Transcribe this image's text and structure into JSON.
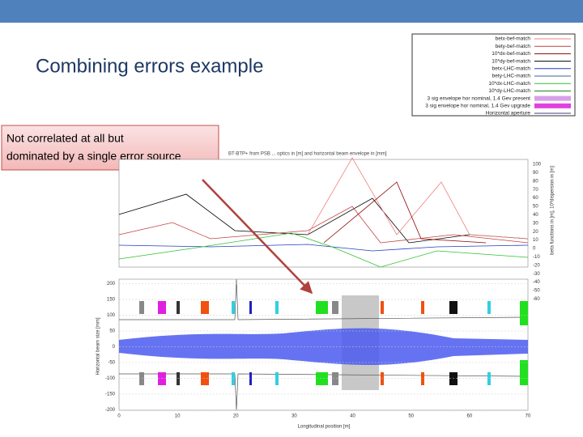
{
  "header": {
    "title": "Combining errors example"
  },
  "callout": {
    "lines": [
      "Not correlated at all but",
      "dominated by a single error source"
    ]
  },
  "legend": {
    "entries": [
      {
        "label": "betx-bef-match",
        "color": "#f08080"
      },
      {
        "label": "bety-bef-match",
        "color": "#c04040"
      },
      {
        "label": "10*dx-bef-match",
        "color": "#8b0000"
      },
      {
        "label": "10*dy-bef-match",
        "color": "#000000"
      },
      {
        "label": "betx-LHC-match",
        "color": "#1f3fbf"
      },
      {
        "label": "bety-LHC-match",
        "color": "#4060a0"
      },
      {
        "label": "10*dx-LHC-match",
        "color": "#30c030"
      },
      {
        "label": "10*dy-LHC-match",
        "color": "#108010"
      },
      {
        "label": "3 sig envelope hor nominal, 1.4 Gev present",
        "color": "#d8a0e8"
      },
      {
        "label": "3 sig envelope hor nominal, 1.4 Gev upgrade",
        "color": "#e040e0"
      },
      {
        "label": "Horizontal aperture",
        "color": "#404080"
      }
    ]
  },
  "figure": {
    "title": "BT-BTP+ from PSB ... optics in [m] and horizontal beam envelope in [mm]",
    "y_right_label": "beta functions in [m], 10*dispersion in [m]",
    "y_right_ticks": [
      100,
      90,
      80,
      70,
      60,
      50,
      40,
      30,
      20,
      10,
      0,
      -10,
      -20,
      -30,
      -40,
      -50,
      -60
    ],
    "y_left_label": "Horizontal beam size [mm]",
    "y_left_ticks": [
      200,
      150,
      100,
      50,
      0,
      -50,
      -100,
      -150,
      -200
    ],
    "x_label": "Longitudinal position [m]",
    "x_ticks": [
      0,
      10,
      20,
      30,
      40,
      50,
      60,
      70
    ]
  }
}
